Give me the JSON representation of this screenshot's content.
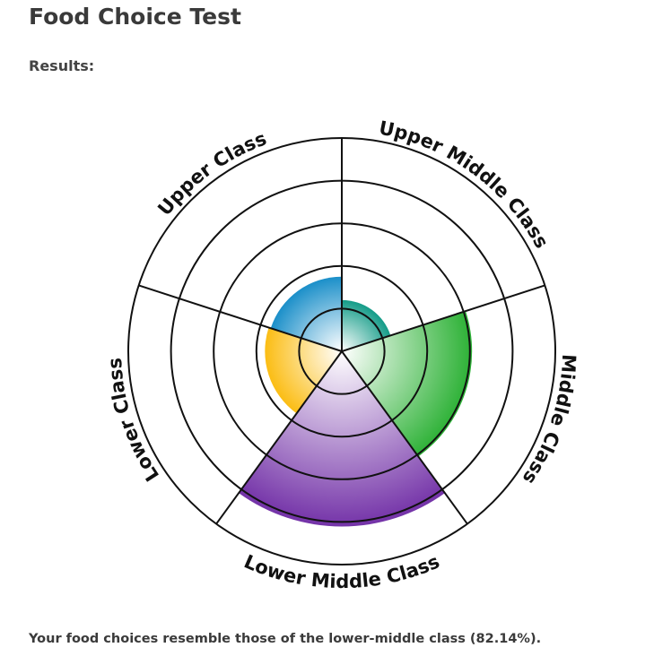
{
  "header": {
    "title": "Food Choice Test",
    "results_label": "Results:"
  },
  "result_text": "Your food choices resemble those of the lower-middle class (82.14%).",
  "chart_data": {
    "type": "polar-area",
    "categories": [
      "Upper Class",
      "Upper Middle Class",
      "Middle Class",
      "Lower Middle Class",
      "Lower Class"
    ],
    "values": [
      35,
      24,
      61,
      82.14,
      36
    ],
    "colors": [
      "#1b8fc9",
      "#149c88",
      "#2cb135",
      "#7433a8",
      "#fbbd14"
    ],
    "rmax": 100,
    "rings": [
      20,
      40,
      60,
      80,
      100
    ]
  }
}
